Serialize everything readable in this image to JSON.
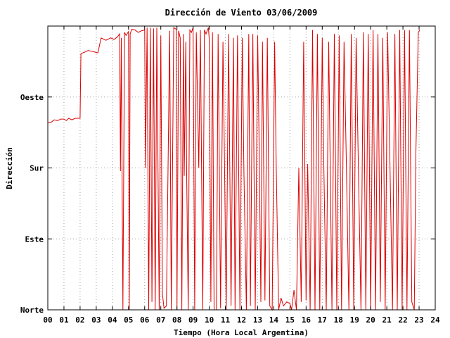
{
  "chart_data": {
    "type": "line",
    "title": "Dirección de Viento 03/06/2009",
    "xlabel": "Tiempo (Hora Local Argentina)",
    "ylabel": "Dirección",
    "xlim": [
      0,
      24
    ],
    "xticks": [
      "00",
      "01",
      "02",
      "03",
      "04",
      "05",
      "06",
      "07",
      "08",
      "09",
      "10",
      "11",
      "12",
      "13",
      "14",
      "15",
      "16",
      "17",
      "18",
      "19",
      "20",
      "21",
      "22",
      "23",
      "24"
    ],
    "ylim": [
      0,
      360
    ],
    "yticks": [
      {
        "value": 0,
        "label": "Norte"
      },
      {
        "value": 90,
        "label": "Este"
      },
      {
        "value": 180,
        "label": "Sur"
      },
      {
        "value": 270,
        "label": "Oeste"
      }
    ],
    "grid": true,
    "series": [
      {
        "color": "#dd0000",
        "points": [
          [
            0.0,
            237
          ],
          [
            0.2,
            238
          ],
          [
            0.4,
            241
          ],
          [
            0.6,
            240
          ],
          [
            0.8,
            242
          ],
          [
            1.0,
            242
          ],
          [
            1.15,
            240
          ],
          [
            1.3,
            243
          ],
          [
            1.5,
            241
          ],
          [
            1.7,
            243
          ],
          [
            1.9,
            243
          ],
          [
            2.0,
            243
          ],
          [
            2.05,
            325
          ],
          [
            2.3,
            327
          ],
          [
            2.5,
            329
          ],
          [
            2.7,
            328
          ],
          [
            2.9,
            327
          ],
          [
            3.1,
            326
          ],
          [
            3.3,
            345
          ],
          [
            3.6,
            342
          ],
          [
            3.9,
            345
          ],
          [
            4.1,
            343
          ],
          [
            4.3,
            346
          ],
          [
            4.45,
            350
          ],
          [
            4.5,
            176
          ],
          [
            4.55,
            345
          ],
          [
            4.65,
            0
          ],
          [
            4.75,
            352
          ],
          [
            4.85,
            348
          ],
          [
            5.0,
            353
          ],
          [
            5.05,
            0
          ],
          [
            5.1,
            350
          ],
          [
            5.2,
            356
          ],
          [
            5.4,
            355
          ],
          [
            5.6,
            352
          ],
          [
            5.8,
            354
          ],
          [
            6.0,
            355
          ],
          [
            6.05,
            180
          ],
          [
            6.15,
            358
          ],
          [
            6.25,
            0
          ],
          [
            6.35,
            358
          ],
          [
            6.45,
            10
          ],
          [
            6.55,
            357
          ],
          [
            6.65,
            0
          ],
          [
            6.75,
            358
          ],
          [
            6.9,
            0
          ],
          [
            7.0,
            348
          ],
          [
            7.1,
            20
          ],
          [
            7.2,
            2
          ],
          [
            7.35,
            5
          ],
          [
            7.45,
            180
          ],
          [
            7.55,
            354
          ],
          [
            7.65,
            0
          ],
          [
            7.8,
            358
          ],
          [
            7.95,
            356
          ],
          [
            8.0,
            0
          ],
          [
            8.1,
            354
          ],
          [
            8.2,
            345
          ],
          [
            8.3,
            0
          ],
          [
            8.4,
            350
          ],
          [
            8.45,
            170
          ],
          [
            8.55,
            340
          ],
          [
            8.6,
            180
          ],
          [
            8.7,
            0
          ],
          [
            8.8,
            355
          ],
          [
            8.9,
            352
          ],
          [
            9.0,
            358
          ],
          [
            9.1,
            0
          ],
          [
            9.2,
            352
          ],
          [
            9.35,
            180
          ],
          [
            9.45,
            355
          ],
          [
            9.6,
            0
          ],
          [
            9.7,
            355
          ],
          [
            9.8,
            350
          ],
          [
            9.95,
            358
          ],
          [
            10.0,
            343
          ],
          [
            10.1,
            10
          ],
          [
            10.2,
            352
          ],
          [
            10.3,
            0
          ],
          [
            10.45,
            0
          ],
          [
            10.55,
            350
          ],
          [
            10.7,
            2
          ],
          [
            10.85,
            340
          ],
          [
            10.95,
            180
          ],
          [
            11.05,
            0
          ],
          [
            11.2,
            350
          ],
          [
            11.35,
            5
          ],
          [
            11.5,
            345
          ],
          [
            11.6,
            0
          ],
          [
            11.75,
            348
          ],
          [
            11.9,
            0
          ],
          [
            12.05,
            345
          ],
          [
            12.15,
            175
          ],
          [
            12.3,
            0
          ],
          [
            12.45,
            350
          ],
          [
            12.55,
            5
          ],
          [
            12.7,
            350
          ],
          [
            12.85,
            0
          ],
          [
            13.0,
            348
          ],
          [
            13.1,
            190
          ],
          [
            13.2,
            10
          ],
          [
            13.3,
            340
          ],
          [
            13.45,
            12
          ],
          [
            13.6,
            345
          ],
          [
            13.75,
            5
          ],
          [
            13.9,
            0
          ],
          [
            14.05,
            340
          ],
          [
            14.15,
            180
          ],
          [
            14.3,
            0
          ],
          [
            14.45,
            15
          ],
          [
            14.6,
            5
          ],
          [
            14.8,
            10
          ],
          [
            15.0,
            8
          ],
          [
            15.1,
            0
          ],
          [
            15.25,
            25
          ],
          [
            15.4,
            0
          ],
          [
            15.55,
            180
          ],
          [
            15.7,
            10
          ],
          [
            15.85,
            340
          ],
          [
            16.0,
            12
          ],
          [
            16.1,
            185
          ],
          [
            16.25,
            0
          ],
          [
            16.4,
            355
          ],
          [
            16.55,
            0
          ],
          [
            16.7,
            350
          ],
          [
            16.85,
            0
          ],
          [
            17.0,
            345
          ],
          [
            17.1,
            180
          ],
          [
            17.25,
            0
          ],
          [
            17.4,
            340
          ],
          [
            17.6,
            0
          ],
          [
            17.75,
            350
          ],
          [
            17.9,
            0
          ],
          [
            18.05,
            348
          ],
          [
            18.2,
            0
          ],
          [
            18.35,
            340
          ],
          [
            18.5,
            180
          ],
          [
            18.65,
            0
          ],
          [
            18.8,
            350
          ],
          [
            18.95,
            0
          ],
          [
            19.1,
            345
          ],
          [
            19.25,
            170
          ],
          [
            19.4,
            0
          ],
          [
            19.55,
            352
          ],
          [
            19.7,
            0
          ],
          [
            19.85,
            350
          ],
          [
            20.0,
            0
          ],
          [
            20.15,
            355
          ],
          [
            20.3,
            0
          ],
          [
            20.45,
            350
          ],
          [
            20.6,
            10
          ],
          [
            20.75,
            345
          ],
          [
            20.9,
            0
          ],
          [
            21.05,
            352
          ],
          [
            21.2,
            180
          ],
          [
            21.35,
            0
          ],
          [
            21.5,
            350
          ],
          [
            21.65,
            0
          ],
          [
            21.8,
            355
          ],
          [
            21.95,
            0
          ],
          [
            22.1,
            355
          ],
          [
            22.25,
            0
          ],
          [
            22.4,
            355
          ],
          [
            22.55,
            10
          ],
          [
            22.7,
            0
          ],
          [
            22.8,
            200
          ],
          [
            22.95,
            352
          ],
          [
            23.05,
            355
          ]
        ]
      }
    ]
  }
}
